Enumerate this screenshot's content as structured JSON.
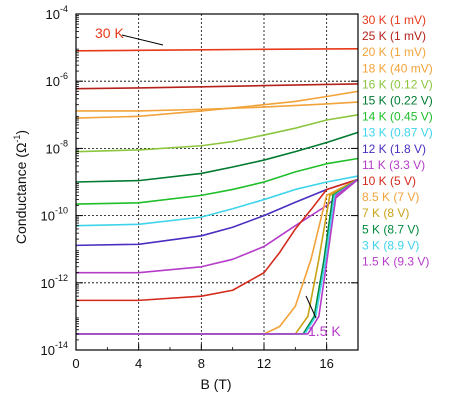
{
  "chart_data": {
    "type": "line",
    "xlabel": "B (T)",
    "ylabel": "Conductance (Ω",
    "ylabel_sup": "-1",
    "ylabel_close": ")",
    "x_ticks": [
      "0",
      "4",
      "8",
      "12",
      "16"
    ],
    "xlim": [
      0,
      18
    ],
    "ylim": [
      1e-14,
      0.0001
    ],
    "y_scale": "log",
    "y_ticks": [
      {
        "base": "10",
        "exp": "-4",
        "value": 0.0001
      },
      {
        "base": "10",
        "exp": "-6",
        "value": 1e-06
      },
      {
        "base": "10",
        "exp": "-8",
        "value": 1e-08
      },
      {
        "base": "10",
        "exp": "-10",
        "value": 1e-10
      },
      {
        "base": "10",
        "exp": "-12",
        "value": 1e-12
      },
      {
        "base": "10",
        "exp": "-14",
        "value": 1e-14
      }
    ],
    "grid": true,
    "legend_position": "right",
    "annotations": [
      {
        "text": "30 K",
        "color": "#e8391a"
      },
      {
        "text": "1.5 K",
        "color": "#b53cc9"
      }
    ],
    "series": [
      {
        "name": "30 K (1 mV)",
        "color": "#e8391a",
        "x": [
          0,
          4,
          8,
          12,
          16,
          18
        ],
        "y": [
          8e-06,
          8.3e-06,
          8.6e-06,
          8.9e-06,
          9.1e-06,
          9.2e-06
        ]
      },
      {
        "name": "25 K (1 mV)",
        "color": "#b5221c",
        "x": [
          0,
          4,
          8,
          12,
          16,
          18
        ],
        "y": [
          6e-07,
          6.3e-07,
          6.8e-07,
          7.4e-07,
          8e-07,
          8.3e-07
        ]
      },
      {
        "name": "20 K (1 mV)",
        "color": "#f2a33a",
        "x": [
          0,
          4,
          8,
          12,
          16,
          18
        ],
        "y": [
          1.3e-07,
          1.3e-07,
          1.45e-07,
          1.7e-07,
          2.1e-07,
          2.4e-07
        ]
      },
      {
        "name": "18 K (40 mV)",
        "color": "#f2a33a",
        "x": [
          0,
          4,
          8,
          10,
          12,
          14,
          16,
          18
        ],
        "y": [
          8e-08,
          9e-08,
          1.3e-07,
          1.6e-07,
          2e-07,
          2.5e-07,
          3.5e-07,
          5e-07
        ]
      },
      {
        "name": "16 K (0.12 V)",
        "color": "#8cc63f",
        "x": [
          0,
          4,
          8,
          10,
          12,
          14,
          16,
          18
        ],
        "y": [
          8e-09,
          9e-09,
          1.2e-08,
          1.6e-08,
          2.5e-08,
          4e-08,
          7e-08,
          1e-07
        ]
      },
      {
        "name": "15 K (0.22 V)",
        "color": "#007a2f",
        "x": [
          0,
          4,
          8,
          10,
          12,
          14,
          16,
          18
        ],
        "y": [
          1e-09,
          1.1e-09,
          1.8e-09,
          2.8e-09,
          4.5e-09,
          8e-09,
          1.5e-08,
          3e-08
        ]
      },
      {
        "name": "14 K (0.45 V)",
        "color": "#1fbf2a",
        "x": [
          0,
          4,
          8,
          10,
          12,
          14,
          16,
          18
        ],
        "y": [
          2.2e-10,
          2.4e-10,
          4e-10,
          6e-10,
          1e-09,
          2e-09,
          3.5e-09,
          5e-09
        ]
      },
      {
        "name": "13 K (0.87 V)",
        "color": "#3fd4ea",
        "x": [
          0,
          4,
          8,
          10,
          12,
          14,
          16,
          18
        ],
        "y": [
          5e-11,
          5.5e-11,
          9e-11,
          1.6e-10,
          3e-10,
          6e-10,
          1e-09,
          1.5e-09
        ]
      },
      {
        "name": "12 K (1.8 V)",
        "color": "#4b2ec0",
        "x": [
          0,
          4,
          8,
          10,
          12,
          14,
          16,
          18
        ],
        "y": [
          1.3e-11,
          1.4e-11,
          2.5e-11,
          4.5e-11,
          1e-10,
          2.5e-10,
          6e-10,
          1.2e-09
        ]
      },
      {
        "name": "11 K (3.3 V)",
        "color": "#b53cc9",
        "x": [
          0,
          4,
          8,
          10,
          12,
          14,
          16,
          18
        ],
        "y": [
          2e-12,
          2e-12,
          3e-12,
          5e-12,
          1.2e-11,
          5e-11,
          2e-10,
          1.2e-09
        ]
      },
      {
        "name": "10 K (5 V)",
        "color": "#d42a1c",
        "x": [
          0,
          4,
          8,
          10,
          12,
          13,
          14,
          15,
          16,
          18
        ],
        "y": [
          3e-13,
          3e-13,
          4e-13,
          6e-13,
          2e-12,
          8e-12,
          4e-11,
          1.5e-10,
          6e-10,
          1.2e-09
        ]
      },
      {
        "name": "8.5 K (7 V)",
        "color": "#f2a33a",
        "x": [
          0,
          4,
          8,
          12,
          13,
          14,
          15,
          16,
          18
        ],
        "y": [
          3e-14,
          3e-14,
          3e-14,
          3e-14,
          5e-14,
          2e-13,
          5e-12,
          4e-10,
          1.2e-09
        ]
      },
      {
        "name": "7 K (8 V)",
        "color": "#c9a316",
        "x": [
          0,
          4,
          8,
          12,
          14,
          14.8,
          15.5,
          16.2,
          18
        ],
        "y": [
          3e-14,
          3e-14,
          3e-14,
          3e-14,
          3e-14,
          1e-13,
          5e-12,
          4e-10,
          1.2e-09
        ]
      },
      {
        "name": "5 K (8.7 V)",
        "color": "#008a3c",
        "x": [
          0,
          4,
          8,
          12,
          14.5,
          15.2,
          15.8,
          16.4,
          18
        ],
        "y": [
          3e-14,
          3e-14,
          3e-14,
          3e-14,
          3e-14,
          1e-13,
          4e-12,
          4e-10,
          1.2e-09
        ]
      },
      {
        "name": "3 K (8.9 V)",
        "color": "#3fd4ea",
        "x": [
          0,
          4,
          8,
          12,
          14.6,
          15.3,
          15.9,
          16.5,
          18
        ],
        "y": [
          3e-14,
          3e-14,
          3e-14,
          3e-14,
          3e-14,
          1e-13,
          4e-12,
          4e-10,
          1.2e-09
        ]
      },
      {
        "name": "1.5 K (9.3 V)",
        "color": "#b53cc9",
        "x": [
          0,
          4,
          8,
          12,
          14.8,
          15.5,
          16.0,
          16.6,
          18
        ],
        "y": [
          3e-14,
          3e-14,
          3e-14,
          3e-14,
          3e-14,
          1e-13,
          4e-12,
          4e-10,
          1.2e-09
        ]
      }
    ]
  }
}
